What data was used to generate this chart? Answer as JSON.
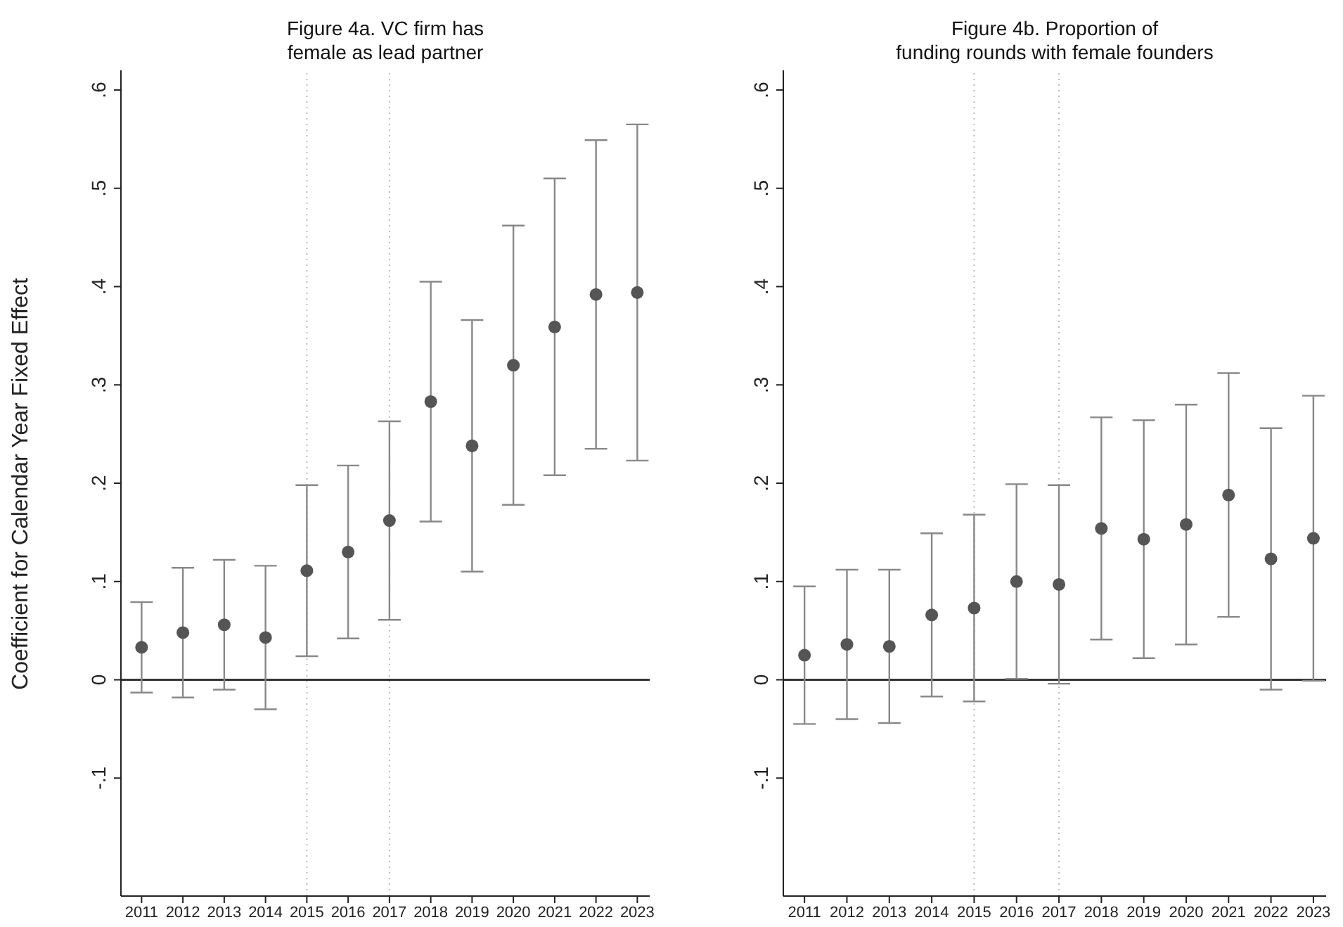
{
  "chart_data": [
    {
      "type": "scatter",
      "title": "Figure 4a. VC firm has\nfemale as lead partner",
      "ylabel": "Coefficient for Calendar Year Fixed Effect",
      "x": [
        2011,
        2012,
        2013,
        2014,
        2015,
        2016,
        2017,
        2018,
        2019,
        2020,
        2021,
        2022,
        2023
      ],
      "series": [
        {
          "color": "#555555",
          "values": [
            0.033,
            0.048,
            0.056,
            0.043,
            0.111,
            0.13,
            0.162,
            0.283,
            0.238,
            0.32,
            0.359,
            0.392,
            0.394
          ],
          "errors": [
            0.046,
            0.066,
            0.066,
            0.073,
            0.087,
            0.088,
            0.101,
            0.122,
            0.128,
            0.142,
            0.151,
            0.157,
            0.171
          ]
        }
      ],
      "xlim": [
        2010.5,
        2023.3
      ],
      "xticks": [
        2011,
        2012,
        2013,
        2014,
        2015,
        2016,
        2017,
        2018,
        2019,
        2020,
        2021,
        2022,
        2023
      ],
      "ylim": [
        -0.22,
        0.62
      ],
      "yticks": [
        {
          "value": -0.1,
          "label": "-.1"
        },
        {
          "value": 0,
          "label": "0"
        },
        {
          "value": 0.1,
          "label": ".1"
        },
        {
          "value": 0.2,
          "label": ".2"
        },
        {
          "value": 0.3,
          "label": ".3"
        },
        {
          "value": 0.4,
          "label": ".4"
        },
        {
          "value": 0.5,
          "label": ".5"
        },
        {
          "value": 0.6,
          "label": ".6"
        }
      ],
      "ref_lines": [
        {
          "axis": "y",
          "value": 0,
          "color": "#333333",
          "line_style": "solid"
        },
        {
          "axis": "x",
          "value": 2015,
          "color": "#bbbbbb",
          "line_style": "dotted"
        },
        {
          "axis": "x",
          "value": 2017,
          "color": "#bbbbbb",
          "line_style": "dotted"
        }
      ],
      "grid": false,
      "marker": "circle"
    },
    {
      "type": "scatter",
      "title": "Figure 4b. Proportion of\nfunding rounds with female founders",
      "x": [
        2011,
        2012,
        2013,
        2014,
        2015,
        2016,
        2017,
        2018,
        2019,
        2020,
        2021,
        2022,
        2023
      ],
      "series": [
        {
          "color": "#555555",
          "values": [
            0.025,
            0.036,
            0.034,
            0.066,
            0.073,
            0.1,
            0.097,
            0.154,
            0.143,
            0.158,
            0.188,
            0.123,
            0.144
          ],
          "errors": [
            0.07,
            0.076,
            0.078,
            0.083,
            0.095,
            0.099,
            0.101,
            0.113,
            0.121,
            0.122,
            0.124,
            0.133,
            0.145
          ]
        }
      ],
      "xlim": [
        2010.5,
        2023.3
      ],
      "xticks": [
        2011,
        2012,
        2013,
        2014,
        2015,
        2016,
        2017,
        2018,
        2019,
        2020,
        2021,
        2022,
        2023
      ],
      "ylim": [
        -0.22,
        0.62
      ],
      "yticks": [
        {
          "value": -0.1,
          "label": "-.1"
        },
        {
          "value": 0,
          "label": "0"
        },
        {
          "value": 0.1,
          "label": ".1"
        },
        {
          "value": 0.2,
          "label": ".2"
        },
        {
          "value": 0.3,
          "label": ".3"
        },
        {
          "value": 0.4,
          "label": ".4"
        },
        {
          "value": 0.5,
          "label": ".5"
        },
        {
          "value": 0.6,
          "label": ".6"
        }
      ],
      "ref_lines": [
        {
          "axis": "y",
          "value": 0,
          "color": "#333333",
          "line_style": "solid"
        },
        {
          "axis": "x",
          "value": 2015,
          "color": "#bbbbbb",
          "line_style": "dotted"
        },
        {
          "axis": "x",
          "value": 2017,
          "color": "#bbbbbb",
          "line_style": "dotted"
        }
      ],
      "grid": false,
      "marker": "circle"
    }
  ]
}
